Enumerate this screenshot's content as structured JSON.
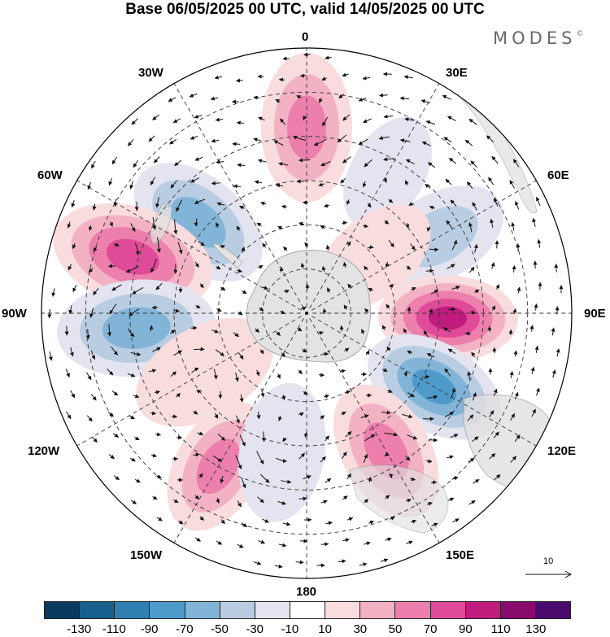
{
  "title": "Base 06/05/2025 00 UTC, valid 14/05/2025 00 UTC",
  "brand": "MODES",
  "brand_mark": "©",
  "longitude_labels": {
    "top": "0",
    "e30": "30E",
    "e60": "60E",
    "e90": "90E",
    "e120": "120E",
    "e150": "150E",
    "bottom": "180",
    "w150": "150W",
    "w120": "120W",
    "w90": "90W",
    "w60": "60W",
    "w30": "30W"
  },
  "reference_vector": {
    "label": "10"
  },
  "colorbar": {
    "colors": [
      "#0a3a5e",
      "#175f8c",
      "#2f7fb3",
      "#4e9aca",
      "#82b4d7",
      "#b9cde2",
      "#e4e4f0",
      "#ffffff",
      "#f8dcde",
      "#f3b2c4",
      "#ec7fac",
      "#df4b98",
      "#c11b7e",
      "#8a0b6e",
      "#4a0a6e"
    ],
    "ticks": [
      "-130",
      "-110",
      "-90",
      "-70",
      "-50",
      "-30",
      "-10",
      "10",
      "30",
      "50",
      "70",
      "90",
      "110",
      "130"
    ]
  },
  "anomaly_centers": [
    {
      "lon": 0,
      "colat_deg": 63,
      "value": 70,
      "size": 1.0
    },
    {
      "lon": -50,
      "colat_deg": 48,
      "value": -70,
      "size": 1.0
    },
    {
      "lon": -72,
      "colat_deg": 62,
      "value": 90,
      "size": 1.15
    },
    {
      "lon": -95,
      "colat_deg": 58,
      "value": -70,
      "size": 1.1
    },
    {
      "lon": 60,
      "colat_deg": 52,
      "value": -50,
      "size": 0.9
    },
    {
      "lon": 92,
      "colat_deg": 48,
      "value": 100,
      "size": 0.9
    },
    {
      "lon": 120,
      "colat_deg": 50,
      "value": -80,
      "size": 0.95
    },
    {
      "lon": 150,
      "colat_deg": 54,
      "value": 70,
      "size": 0.95
    },
    {
      "lon": -150,
      "colat_deg": 60,
      "value": 70,
      "size": 0.9
    },
    {
      "lon": -170,
      "colat_deg": 48,
      "value": -30,
      "size": 0.9
    },
    {
      "lon": 30,
      "colat_deg": 55,
      "value": -30,
      "size": 0.7
    },
    {
      "lon": 50,
      "colat_deg": 30,
      "value": 30,
      "size": 0.8
    },
    {
      "lon": -120,
      "colat_deg": 40,
      "value": 30,
      "size": 1.0
    }
  ]
}
